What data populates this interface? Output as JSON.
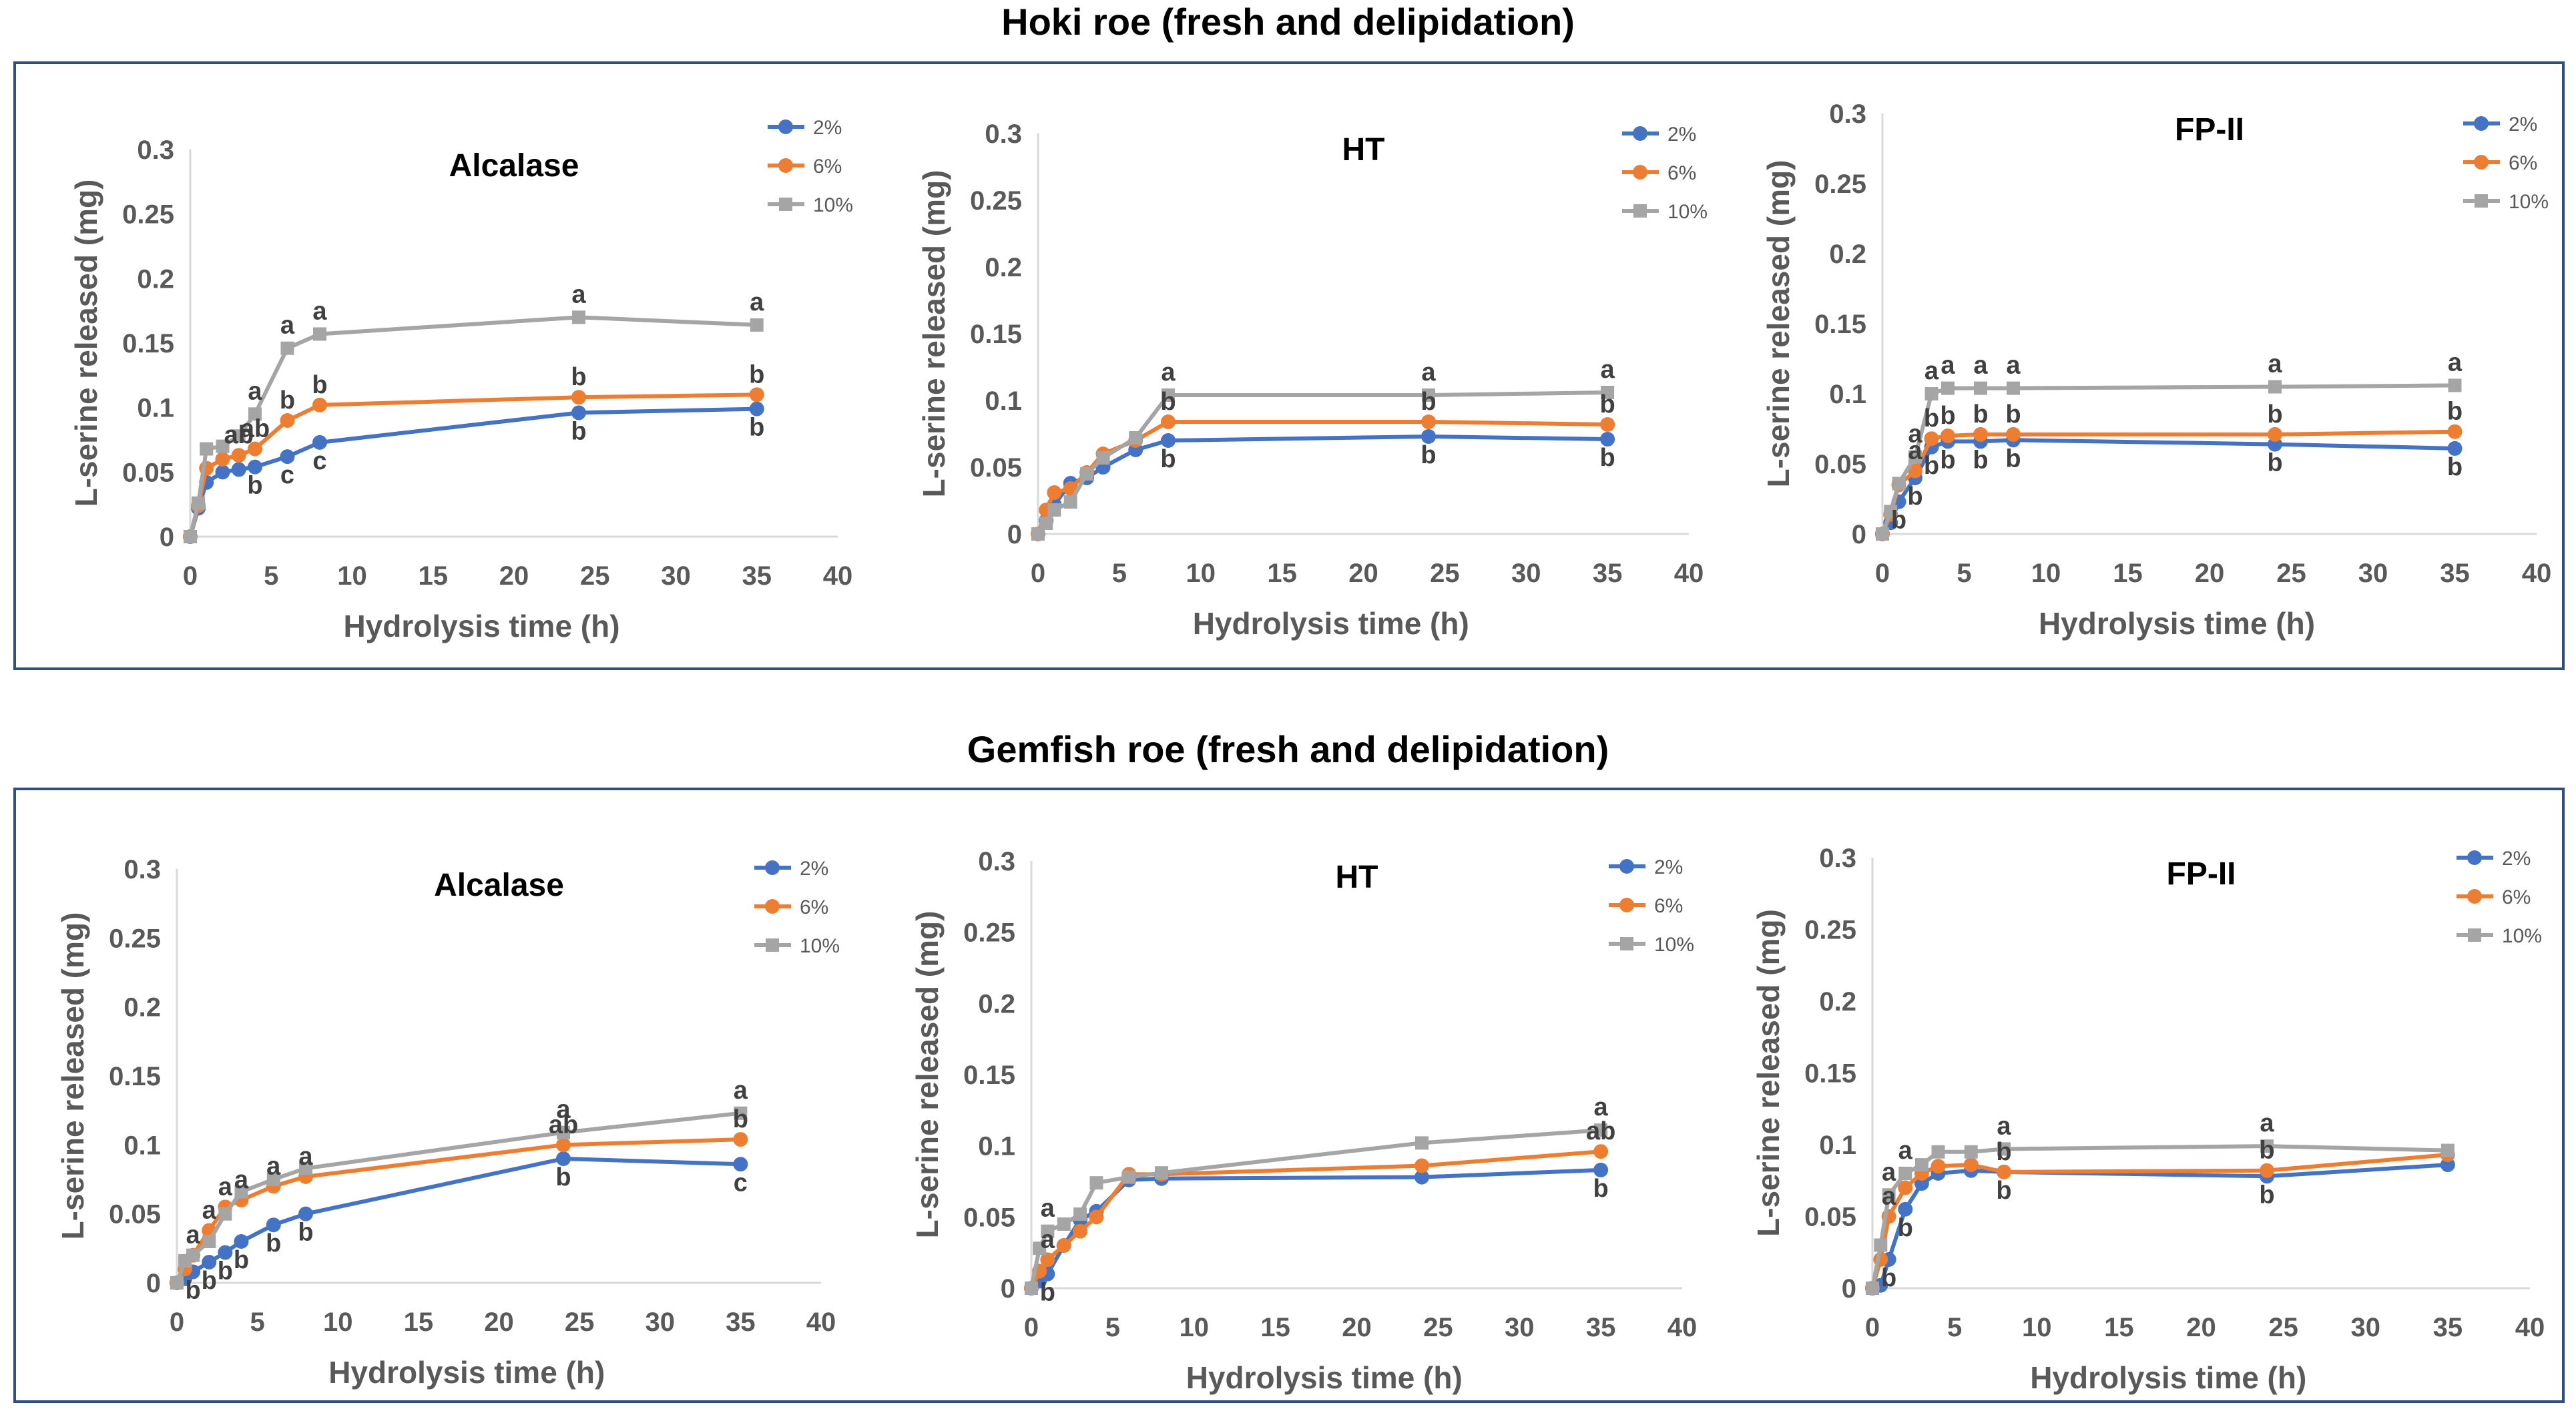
{
  "figure": {
    "row_titles": [
      "Hoki roe (fresh and delipidation)",
      "Gemfish roe (fresh and delipidation)"
    ]
  },
  "colors": {
    "2%": "#4472C4",
    "6%": "#ED7D31",
    "10%": "#A5A5A5",
    "frame": "#2F4E7C"
  },
  "chart_data": [
    {
      "type": "line",
      "group": "Hoki roe (fresh and delipidation)",
      "title": "Alcalase",
      "xlabel": "Hydrolysis time (h)",
      "ylabel": "L-serine released (mg)",
      "xlim": [
        0,
        40
      ],
      "ylim": [
        0,
        0.3
      ],
      "xticks": [
        "0",
        "5",
        "10",
        "15",
        "20",
        "25",
        "30",
        "35",
        "40"
      ],
      "yticks": [
        "0",
        "0.05",
        "0.1",
        "0.15",
        "0.2",
        "0.25",
        "0.3"
      ],
      "x": [
        0,
        0.5,
        1,
        2,
        3,
        4,
        6,
        8,
        24,
        35
      ],
      "series": [
        {
          "name": "2%",
          "values": [
            0,
            0.022,
            0.042,
            0.05,
            0.052,
            0.054,
            0.062,
            0.073,
            0.096,
            0.099
          ],
          "labels": [
            "",
            "",
            "",
            "",
            "",
            "b",
            "c",
            "c",
            "b",
            "b"
          ]
        },
        {
          "name": "6%",
          "values": [
            0,
            0.024,
            0.053,
            0.06,
            0.063,
            0.068,
            0.09,
            0.102,
            0.108,
            0.11
          ],
          "labels": [
            "",
            "",
            "",
            "",
            "ab",
            "ab",
            "b",
            "b",
            "b",
            "b"
          ]
        },
        {
          "name": "10%",
          "values": [
            0,
            0.026,
            0.068,
            0.07,
            0.078,
            0.095,
            0.146,
            0.157,
            0.17,
            0.164
          ],
          "labels": [
            "",
            "",
            "",
            "",
            "",
            "a",
            "a",
            "a",
            "a",
            "a"
          ]
        }
      ]
    },
    {
      "type": "line",
      "group": "Hoki roe (fresh and delipidation)",
      "title": "HT",
      "xlabel": "Hydrolysis time (h)",
      "ylabel": "L-serine released (mg)",
      "xlim": [
        0,
        40
      ],
      "ylim": [
        0,
        0.3
      ],
      "xticks": [
        "0",
        "5",
        "10",
        "15",
        "20",
        "25",
        "30",
        "35",
        "40"
      ],
      "yticks": [
        "0",
        "0.05",
        "0.1",
        "0.15",
        "0.2",
        "0.25",
        "0.3"
      ],
      "x": [
        0,
        0.5,
        1,
        2,
        3,
        4,
        6,
        8,
        24,
        35
      ],
      "series": [
        {
          "name": "2%",
          "values": [
            0,
            0.01,
            0.022,
            0.038,
            0.042,
            0.05,
            0.063,
            0.07,
            0.073,
            0.071
          ],
          "labels": [
            "",
            "",
            "",
            "",
            "",
            "",
            "",
            "b",
            "b",
            "b"
          ]
        },
        {
          "name": "6%",
          "values": [
            0,
            0.018,
            0.031,
            0.034,
            0.046,
            0.06,
            0.07,
            0.084,
            0.084,
            0.082
          ],
          "labels": [
            "",
            "",
            "",
            "",
            "",
            "",
            "",
            "b",
            "b",
            "b"
          ]
        },
        {
          "name": "10%",
          "values": [
            0,
            0.008,
            0.018,
            0.024,
            0.045,
            0.057,
            0.072,
            0.104,
            0.104,
            0.106
          ],
          "labels": [
            "",
            "",
            "",
            "",
            "",
            "",
            "",
            "a",
            "a",
            "a"
          ]
        }
      ]
    },
    {
      "type": "line",
      "group": "Hoki roe (fresh and delipidation)",
      "title": "FP-II",
      "xlabel": "Hydrolysis time (h)",
      "ylabel": "L-serine released (mg)",
      "xlim": [
        0,
        40
      ],
      "ylim": [
        0,
        0.3
      ],
      "xticks": [
        "0",
        "5",
        "10",
        "15",
        "20",
        "25",
        "30",
        "35",
        "40"
      ],
      "yticks": [
        "0",
        "0.05",
        "0.1",
        "0.15",
        "0.2",
        "0.25",
        "0.3"
      ],
      "x": [
        0,
        0.5,
        1,
        2,
        3,
        4,
        6,
        8,
        24,
        35
      ],
      "series": [
        {
          "name": "2%",
          "values": [
            0,
            0.008,
            0.023,
            0.04,
            0.062,
            0.066,
            0.066,
            0.067,
            0.064,
            0.061
          ],
          "labels": [
            "",
            "",
            "b",
            "b",
            "b",
            "b",
            "b",
            "b",
            "b",
            "b"
          ]
        },
        {
          "name": "6%",
          "values": [
            0,
            0.014,
            0.035,
            0.045,
            0.068,
            0.07,
            0.071,
            0.071,
            0.071,
            0.073
          ],
          "labels": [
            "",
            "",
            "",
            "a",
            "b",
            "b",
            "b",
            "b",
            "b",
            "b"
          ]
        },
        {
          "name": "10%",
          "values": [
            0,
            0.016,
            0.036,
            0.055,
            0.1,
            0.104,
            0.104,
            0.104,
            0.105,
            0.106
          ],
          "labels": [
            "",
            "",
            "",
            "a",
            "a",
            "a",
            "a",
            "a",
            "a",
            "a"
          ]
        }
      ]
    },
    {
      "type": "line",
      "group": "Gemfish roe (fresh and delipidation)",
      "title": "Alcalase",
      "xlabel": "Hydrolysis time (h)",
      "ylabel": "L-serine released (mg)",
      "xlim": [
        0,
        40
      ],
      "ylim": [
        0,
        0.3
      ],
      "xticks": [
        "0",
        "5",
        "10",
        "15",
        "20",
        "25",
        "30",
        "35",
        "40"
      ],
      "yticks": [
        "0",
        "0.05",
        "0.1",
        "0.15",
        "0.2",
        "0.25",
        "0.3"
      ],
      "x": [
        0,
        0.5,
        1,
        2,
        3,
        4,
        6,
        8,
        24,
        35
      ],
      "series": [
        {
          "name": "2%",
          "values": [
            0,
            0.003,
            0.008,
            0.015,
            0.022,
            0.03,
            0.042,
            0.05,
            0.09,
            0.086
          ],
          "labels": [
            "",
            "",
            "b",
            "b",
            "b",
            "b",
            "b",
            "b",
            "b",
            "c"
          ]
        },
        {
          "name": "6%",
          "values": [
            0,
            0.01,
            0.02,
            0.038,
            0.055,
            0.06,
            0.07,
            0.077,
            0.1,
            0.104
          ],
          "labels": [
            "",
            "",
            "a",
            "a",
            "a",
            "a",
            "a",
            "a",
            "ab",
            "b"
          ]
        },
        {
          "name": "10%",
          "values": [
            0,
            0.016,
            0.02,
            0.03,
            0.05,
            0.066,
            0.075,
            0.083,
            0.109,
            0.123
          ],
          "labels": [
            "",
            "",
            "",
            "",
            "",
            "",
            "",
            "",
            "a",
            "a"
          ]
        }
      ]
    },
    {
      "type": "line",
      "group": "Gemfish roe (fresh and delipidation)",
      "title": "HT",
      "xlabel": "Hydrolysis time (h)",
      "ylabel": "L-serine released (mg)",
      "xlim": [
        0,
        40
      ],
      "ylim": [
        0,
        0.3
      ],
      "xticks": [
        "0",
        "5",
        "10",
        "15",
        "20",
        "25",
        "30",
        "35",
        "40"
      ],
      "yticks": [
        "0",
        "0.05",
        "0.1",
        "0.15",
        "0.2",
        "0.25",
        "0.3"
      ],
      "x": [
        0,
        0.5,
        1,
        2,
        3,
        4,
        6,
        8,
        24,
        35
      ],
      "series": [
        {
          "name": "2%",
          "values": [
            0,
            0.005,
            0.01,
            0.03,
            0.048,
            0.054,
            0.076,
            0.077,
            0.078,
            0.083
          ],
          "labels": [
            "",
            "",
            "b",
            "",
            "",
            "",
            "",
            "",
            "",
            "b"
          ]
        },
        {
          "name": "6%",
          "values": [
            0,
            0.012,
            0.02,
            0.03,
            0.04,
            0.05,
            0.08,
            0.08,
            0.086,
            0.096
          ],
          "labels": [
            "",
            "",
            "a",
            "",
            "",
            "",
            "",
            "",
            "",
            "ab"
          ]
        },
        {
          "name": "10%",
          "values": [
            0,
            0.028,
            0.04,
            0.045,
            0.052,
            0.074,
            0.078,
            0.081,
            0.102,
            0.111
          ],
          "labels": [
            "",
            "",
            "a",
            "",
            "",
            "",
            "",
            "",
            "",
            "a"
          ]
        }
      ]
    },
    {
      "type": "line",
      "group": "Gemfish roe (fresh and delipidation)",
      "title": "FP-II",
      "xlabel": "Hydrolysis time (h)",
      "ylabel": "L-serine released (mg)",
      "xlim": [
        0,
        40
      ],
      "ylim": [
        0,
        0.3
      ],
      "xticks": [
        "0",
        "5",
        "10",
        "15",
        "20",
        "25",
        "30",
        "35",
        "40"
      ],
      "yticks": [
        "0",
        "0.05",
        "0.1",
        "0.15",
        "0.2",
        "0.25",
        "0.3"
      ],
      "x": [
        0,
        0.5,
        1,
        2,
        3,
        4,
        6,
        8,
        24,
        35
      ],
      "series": [
        {
          "name": "2%",
          "values": [
            0,
            0.002,
            0.02,
            0.055,
            0.073,
            0.08,
            0.082,
            0.081,
            0.078,
            0.086
          ],
          "labels": [
            "",
            "",
            "b",
            "b",
            "",
            "",
            "",
            "b",
            "b",
            ""
          ]
        },
        {
          "name": "6%",
          "values": [
            0,
            0.02,
            0.05,
            0.07,
            0.08,
            0.085,
            0.086,
            0.081,
            0.082,
            0.093
          ],
          "labels": [
            "",
            "",
            "a",
            "",
            "",
            "",
            "",
            "b",
            "b",
            ""
          ]
        },
        {
          "name": "10%",
          "values": [
            0,
            0.03,
            0.065,
            0.08,
            0.086,
            0.095,
            0.095,
            0.097,
            0.099,
            0.096
          ],
          "labels": [
            "",
            "",
            "a",
            "a",
            "",
            "",
            "",
            "a",
            "a",
            ""
          ]
        }
      ]
    }
  ]
}
